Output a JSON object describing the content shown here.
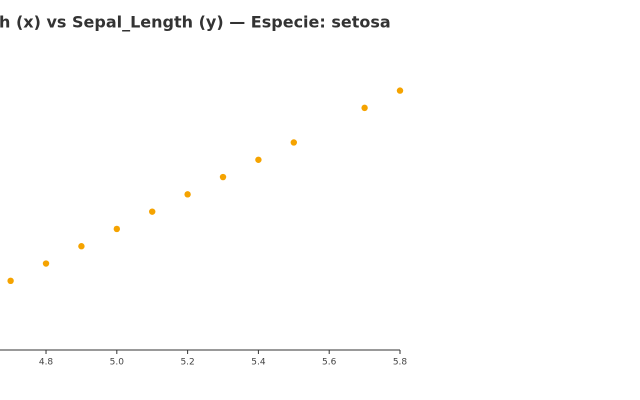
{
  "chart_data": {
    "type": "scatter",
    "title": "h (x) vs Sepal_Length (y) — Especie: setosa",
    "x": [
      4.7,
      4.8,
      4.9,
      5.0,
      5.1,
      5.2,
      5.3,
      5.4,
      5.5,
      5.7,
      5.8
    ],
    "values": [
      4.7,
      4.8,
      4.9,
      5.0,
      5.1,
      5.2,
      5.3,
      5.4,
      5.5,
      5.7,
      5.8
    ],
    "color": "#f5a300",
    "xlim": [
      4.67,
      5.8
    ],
    "xticks": [
      4.8,
      {
        "value": 5,
        "label": "5.0"
      },
      5.2,
      5.4,
      5.6,
      5.8
    ],
    "ylim": [
      4.3,
      6.0
    ]
  }
}
